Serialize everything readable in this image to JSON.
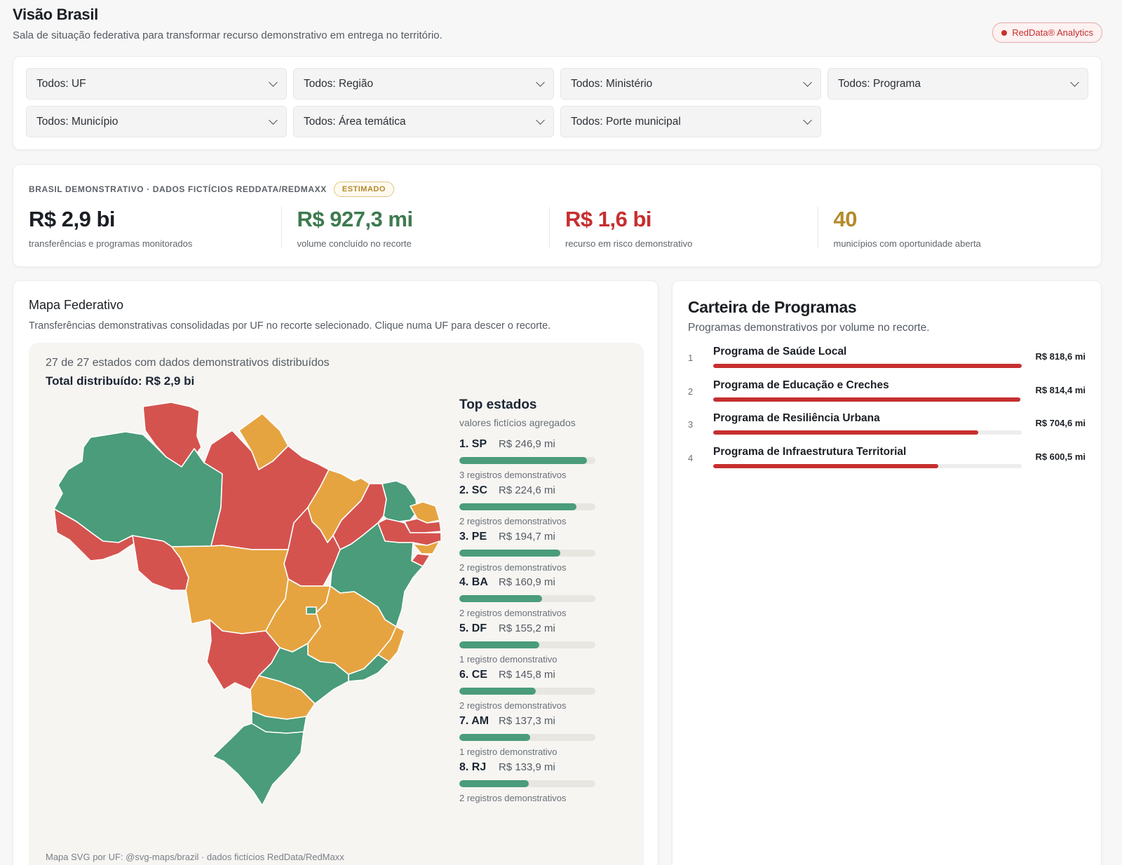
{
  "header": {
    "title": "Visão Brasil",
    "subtitle": "Sala de situação federativa para transformar recurso demonstrativo em entrega no território.",
    "brand": "RedData® Analytics"
  },
  "filters": [
    "Todos: UF",
    "Todos: Região",
    "Todos: Ministério",
    "Todos: Programa",
    "Todos: Município",
    "Todos: Área temática",
    "Todos: Porte municipal"
  ],
  "kpis": {
    "caption": "BRASIL DEMONSTRATIVO · DADOS FICTÍCIOS REDDATA/REDMAXX",
    "badge": "ESTIMADO",
    "items": [
      {
        "value": "R$ 2,9 bi",
        "label": "transferências e programas monitorados",
        "color": "#1b1f24"
      },
      {
        "value": "R$ 927,3 mi",
        "label": "volume concluído no recorte",
        "color": "#3d7a4f"
      },
      {
        "value": "R$ 1,6 bi",
        "label": "recurso em risco demonstrativo",
        "color": "#c62f2f"
      },
      {
        "value": "40",
        "label": "municípios com oportunidade aberta",
        "color": "#b48a2a"
      }
    ]
  },
  "map": {
    "title": "Mapa Federativo",
    "description": "Transferências demonstrativas consolidadas por UF no recorte selecionado. Clique numa UF para descer o recorte.",
    "count": "27 de 27 estados com dados demonstrativos distribuídos",
    "total": "Total distribuído: R$ 2,9 bi",
    "source": "Mapa SVG por UF: @svg-maps/brazil · dados fictícios RedData/RedMaxx",
    "colors": {
      "green": "#4a9c7a",
      "orange": "#e6a441",
      "red": "#d4534f"
    },
    "top_title": "Top estados",
    "top_subtitle": "valores fictícios agregados",
    "top": [
      {
        "rank": "1. SP",
        "value": "R$ 246,9 mi",
        "share": 0.94,
        "records": "3 registros demonstrativos"
      },
      {
        "rank": "2. SC",
        "value": "R$ 224,6 mi",
        "share": 0.86,
        "records": "2 registros demonstrativos"
      },
      {
        "rank": "3. PE",
        "value": "R$ 194,7 mi",
        "share": 0.74,
        "records": "2 registros demonstrativos"
      },
      {
        "rank": "4. BA",
        "value": "R$ 160,9 mi",
        "share": 0.61,
        "records": "2 registros demonstrativos"
      },
      {
        "rank": "5. DF",
        "value": "R$ 155,2 mi",
        "share": 0.59,
        "records": "1 registro demonstrativo"
      },
      {
        "rank": "6. CE",
        "value": "R$ 145,8 mi",
        "share": 0.56,
        "records": "2 registros demonstrativos"
      },
      {
        "rank": "7. AM",
        "value": "R$ 137,3 mi",
        "share": 0.52,
        "records": "1 registro demonstrativo"
      },
      {
        "rank": "8. RJ",
        "value": "R$ 133,9 mi",
        "share": 0.51,
        "records": "2 registros demonstrativos"
      }
    ]
  },
  "programs": {
    "title": "Carteira de Programas",
    "description": "Programas demonstrativos por volume no recorte.",
    "items": [
      {
        "num": "1",
        "name": "Programa de Saúde Local",
        "value": "R$ 818,6 mi",
        "share": 1.0
      },
      {
        "num": "2",
        "name": "Programa de Educação e Creches",
        "value": "R$ 814,4 mi",
        "share": 0.995
      },
      {
        "num": "3",
        "name": "Programa de Resiliência Urbana",
        "value": "R$ 704,6 mi",
        "share": 0.86
      },
      {
        "num": "4",
        "name": "Programa de Infraestrutura Territorial",
        "value": "R$ 600,5 mi",
        "share": 0.73
      }
    ]
  }
}
